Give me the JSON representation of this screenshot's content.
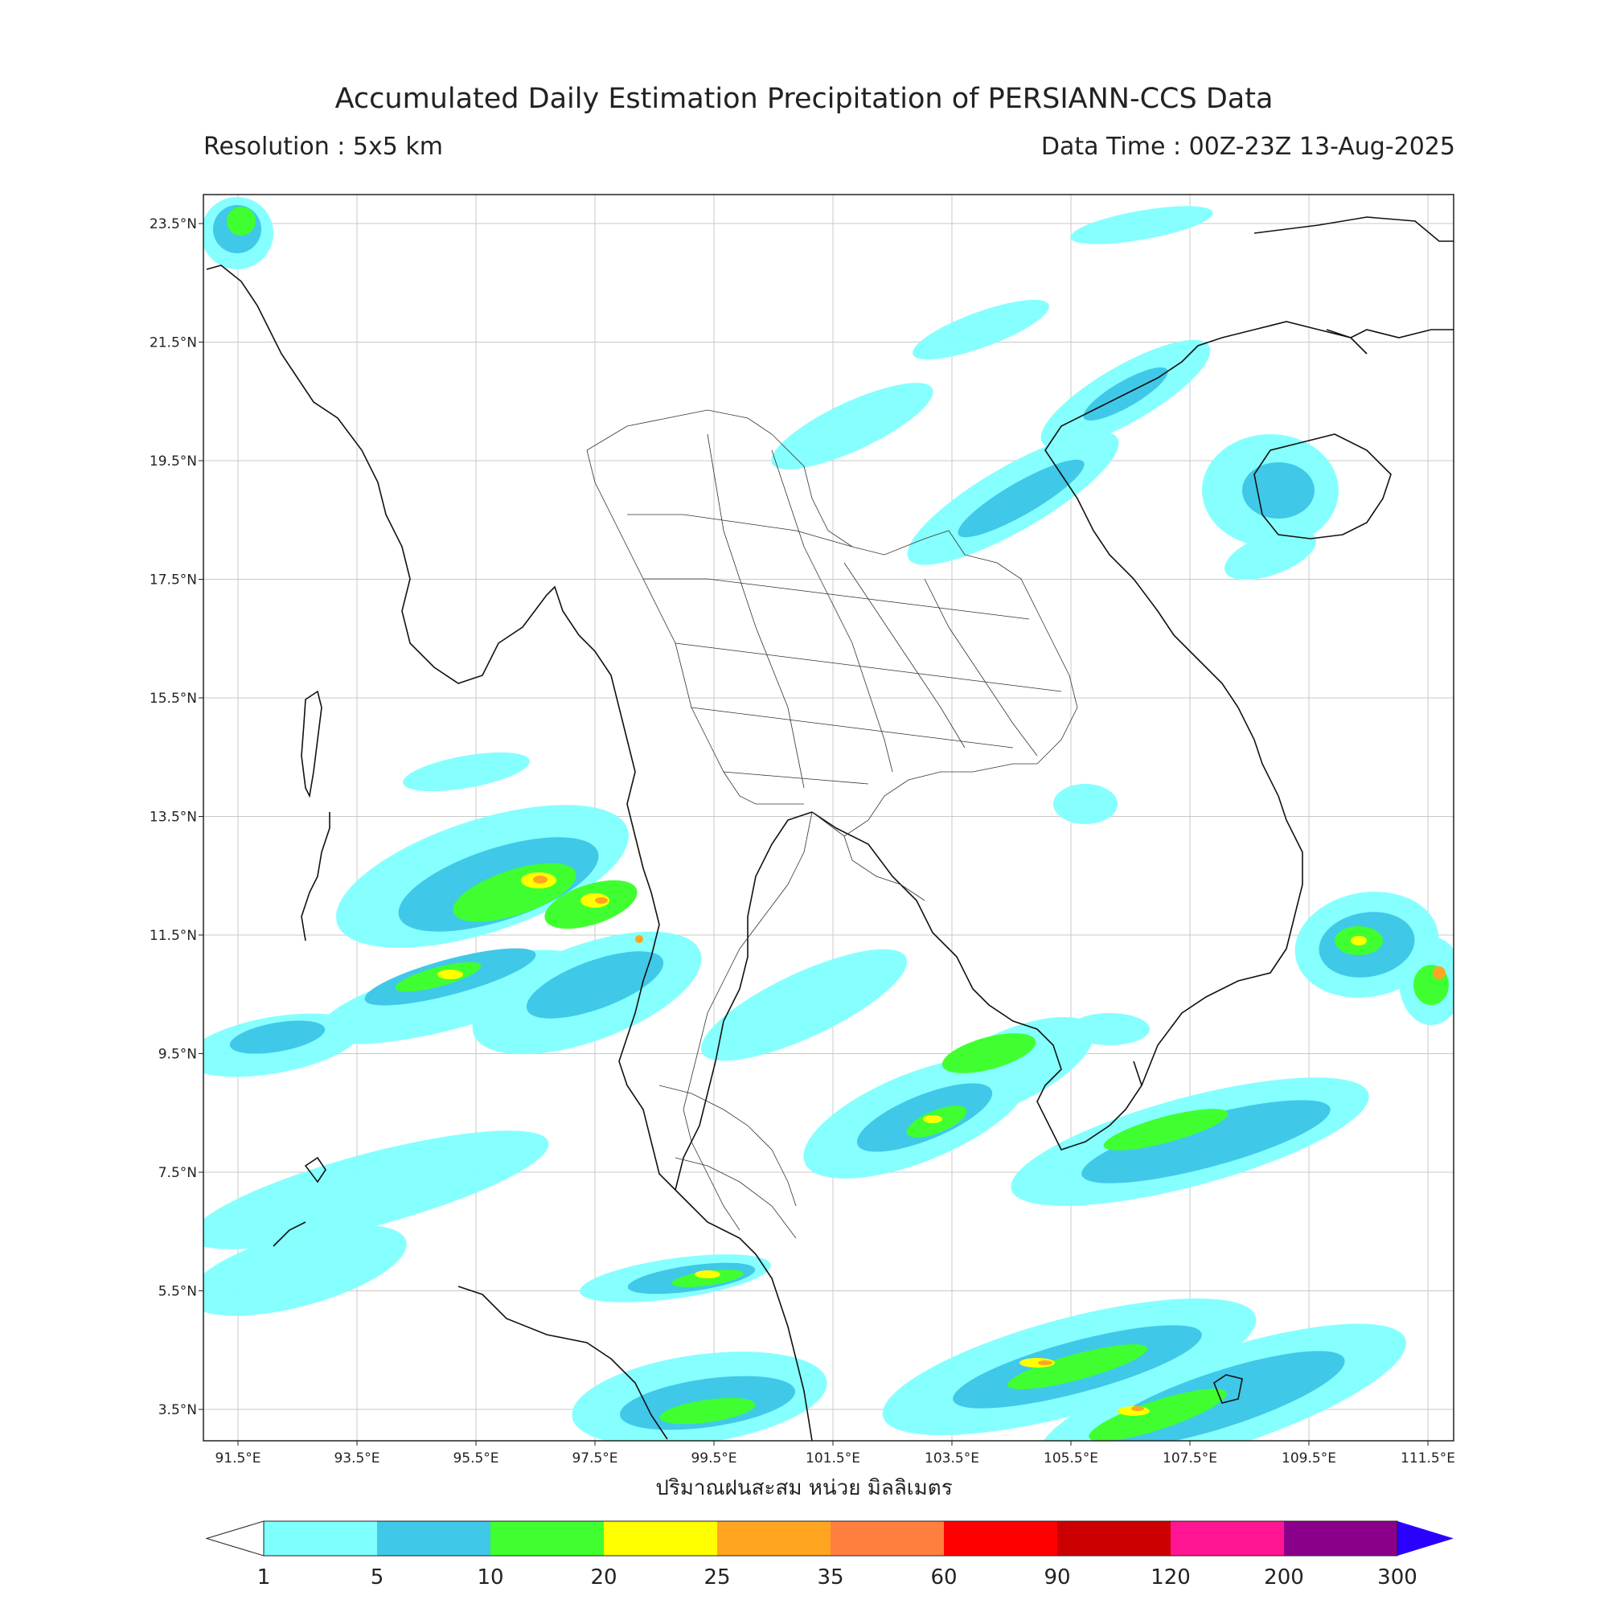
{
  "header": {
    "title": "Accumulated Daily Estimation Precipitation of PERSIANN-CCS Data",
    "resolution": "Resolution : 5x5 km",
    "data_time": "Data Time : 00Z-23Z 13-Aug-2025"
  },
  "axes": {
    "lon_labels": [
      "91.5°E",
      "93.5°E",
      "95.5°E",
      "97.5°E",
      "99.5°E",
      "101.5°E",
      "103.5°E",
      "105.5°E",
      "107.5°E",
      "109.5°E",
      "111.5°E"
    ],
    "lat_labels": [
      "23.5°N",
      "21.5°N",
      "19.5°N",
      "17.5°N",
      "15.5°N",
      "13.5°N",
      "11.5°N",
      "9.5°N",
      "7.5°N",
      "5.5°N",
      "3.5°N"
    ],
    "xlabel": "ปริมาณฝนสะสม หน่วย มิลลิเมตร"
  },
  "colorbar": {
    "levels": [
      "1",
      "5",
      "10",
      "20",
      "25",
      "35",
      "60",
      "90",
      "120",
      "200",
      "300"
    ],
    "colors": [
      "#80ffff",
      "#40c8e8",
      "#40ff30",
      "#ffff00",
      "#ffa520",
      "#ff7f40",
      "#ff0000",
      "#cc0000",
      "#ff1493",
      "#8b008b",
      "#2a00ff"
    ]
  }
}
